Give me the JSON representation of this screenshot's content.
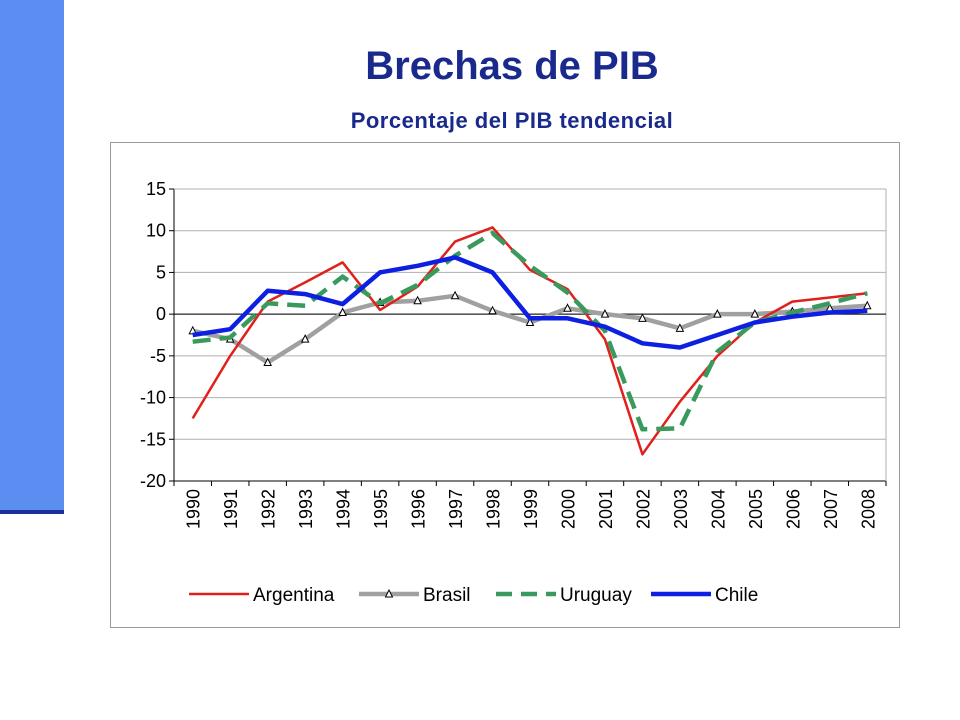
{
  "slide": {
    "title": "Brechas de PIB",
    "subtitle": "Porcentaje del PIB tendencial",
    "accent_color": "#5b8ef0",
    "accent_line_color": "#1f2f9a",
    "title_color": "#1a2a8c"
  },
  "chart_data": {
    "type": "line",
    "title": "",
    "xlabel": "",
    "ylabel": "",
    "ylim": [
      -20,
      15
    ],
    "yticks": [
      15,
      10,
      5,
      0,
      -5,
      -10,
      -15,
      -20
    ],
    "ytick_labels": [
      "15",
      "10",
      "5",
      "0",
      "-5",
      "-10",
      "-15",
      "-20"
    ],
    "grid": true,
    "legend_position": "bottom",
    "categories": [
      "1990",
      "1991",
      "1992",
      "1993",
      "1994",
      "1995",
      "1996",
      "1997",
      "1998",
      "1999",
      "2000",
      "2001",
      "2002",
      "2003",
      "2004",
      "2005",
      "2006",
      "2007",
      "2008"
    ],
    "series": [
      {
        "name": "Argentina",
        "color": "#e0201b",
        "style": "solid",
        "values": [
          -12.5,
          -5.0,
          1.5,
          3.8,
          6.2,
          0.5,
          3.3,
          8.7,
          10.4,
          5.3,
          3.0,
          -3.0,
          -16.8,
          -10.5,
          -5.0,
          -1.0,
          1.5,
          2.0,
          2.5
        ]
      },
      {
        "name": "Brasil",
        "color": "#a0a0a0",
        "style": "solid-markers",
        "values": [
          -2.0,
          -3.0,
          -5.8,
          -3.0,
          0.2,
          1.4,
          1.6,
          2.2,
          0.4,
          -1.0,
          0.7,
          0.0,
          -0.5,
          -1.7,
          0.0,
          0.0,
          0.3,
          0.7,
          1.0
        ]
      },
      {
        "name": "Uruguay",
        "color": "#3a9a5e",
        "style": "dashed",
        "values": [
          -3.3,
          -2.8,
          1.3,
          1.0,
          4.5,
          1.3,
          3.5,
          7.0,
          9.7,
          5.8,
          2.6,
          -2.0,
          -13.8,
          -13.7,
          -4.5,
          -1.0,
          0.2,
          1.3,
          2.5
        ]
      },
      {
        "name": "Chile",
        "color": "#0d1fe0",
        "style": "solid-thick",
        "values": [
          -2.5,
          -1.8,
          2.8,
          2.4,
          1.2,
          5.0,
          5.8,
          6.8,
          5.0,
          -0.5,
          -0.5,
          -1.5,
          -3.5,
          -4.0,
          -2.5,
          -1.0,
          -0.3,
          0.2,
          0.4
        ]
      }
    ]
  }
}
